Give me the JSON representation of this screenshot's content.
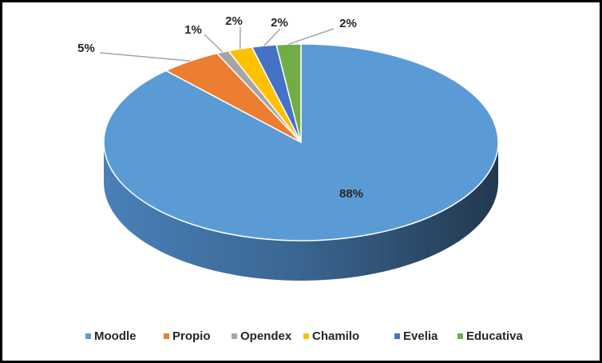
{
  "chart_data": {
    "type": "pie",
    "categories": [
      "Moodle",
      "Propio",
      "Opendex",
      "Chamilo",
      "Evelia",
      "Educativa"
    ],
    "values": [
      88,
      5,
      1,
      2,
      2,
      2
    ],
    "value_labels": [
      "88%",
      "5%",
      "1%",
      "2%",
      "2%",
      "2%"
    ],
    "colors": [
      "#5b9bd5",
      "#ed7d31",
      "#a5a5a5",
      "#ffc000",
      "#4472c4",
      "#70ad47"
    ],
    "legend": "bottom"
  }
}
